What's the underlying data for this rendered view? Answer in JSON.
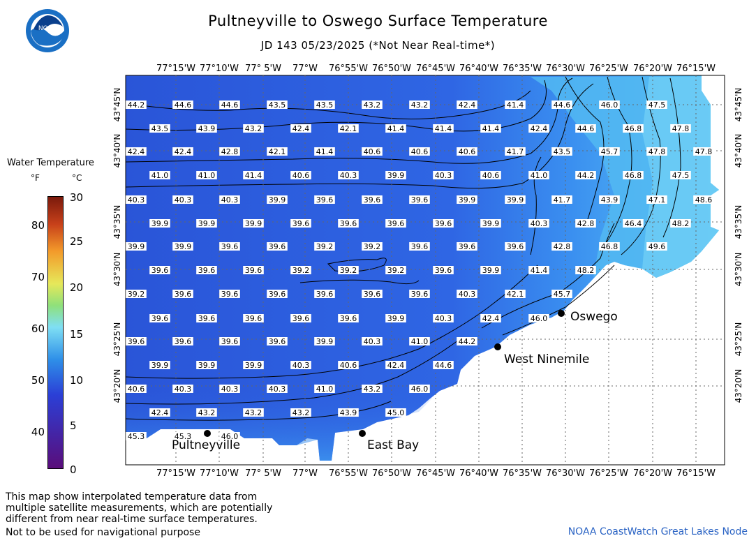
{
  "header": {
    "title": "Pultneyville to Oswego Surface Temperature",
    "subtitle": "JD 143 05/23/2025 (*Not Near Real-time*)",
    "logo_text": "NOAA"
  },
  "legend": {
    "title": "Water Temperature",
    "unit_f": "°F",
    "unit_c": "°C",
    "f_ticks": [
      "80",
      "70",
      "60",
      "50",
      "40"
    ],
    "c_ticks": [
      "30",
      "25",
      "20",
      "15",
      "10",
      "5",
      "0"
    ]
  },
  "axes": {
    "lon_labels": [
      "77°15'W",
      "77°10'W",
      "77° 5'W",
      "77°W",
      "76°55'W",
      "76°50'W",
      "76°45'W",
      "76°40'W",
      "76°35'W",
      "76°30'W",
      "76°25'W",
      "76°20'W",
      "76°15'W"
    ],
    "lon_labels_top_last": "76°15'W",
    "lat_labels": [
      "43°45'N",
      "43°40'N",
      "43°35'N",
      "43°30'N",
      "43°25'N",
      "43°20'N"
    ]
  },
  "map": {
    "places": [
      {
        "name": "Oswego"
      },
      {
        "name": "West Ninemile"
      },
      {
        "name": "Pultneyville"
      },
      {
        "name": "East Bay"
      }
    ],
    "grid_values": [
      [
        "44.2",
        "44.6",
        "44.6",
        "43.5",
        "43.5",
        "43.2",
        "43.2",
        "42.4",
        "41.4",
        "44.6",
        "46.0",
        "47.5"
      ],
      [
        "43.5",
        "43.9",
        "43.2",
        "42.4",
        "42.1",
        "41.4",
        "41.4",
        "41.4",
        "42.4",
        "44.6",
        "46.8",
        "47.8"
      ],
      [
        "42.4",
        "42.4",
        "42.8",
        "42.1",
        "41.4",
        "40.6",
        "40.6",
        "40.6",
        "41.7",
        "43.5",
        "45.7",
        "47.8",
        "47.8"
      ],
      [
        "41.0",
        "41.0",
        "41.4",
        "40.6",
        "40.3",
        "39.9",
        "40.3",
        "40.6",
        "41.0",
        "44.2",
        "46.8",
        "47.5"
      ],
      [
        "40.3",
        "40.3",
        "40.3",
        "39.9",
        "39.6",
        "39.6",
        "39.6",
        "39.9",
        "39.9",
        "41.7",
        "43.9",
        "47.1",
        "48.6"
      ],
      [
        "39.9",
        "39.9",
        "39.9",
        "39.6",
        "39.6",
        "39.6",
        "39.6",
        "39.9",
        "40.3",
        "42.8",
        "46.4",
        "48.2"
      ],
      [
        "39.9",
        "39.9",
        "39.6",
        "39.6",
        "39.2",
        "39.2",
        "39.6",
        "39.6",
        "39.6",
        "42.8",
        "46.8",
        "49.6"
      ],
      [
        "39.6",
        "39.6",
        "39.6",
        "39.2",
        "39.2",
        "39.2",
        "39.6",
        "39.9",
        "41.4",
        "48.2"
      ],
      [
        "39.2",
        "39.6",
        "39.6",
        "39.6",
        "39.6",
        "39.6",
        "39.6",
        "40.3",
        "42.1",
        "45.7"
      ],
      [
        "39.6",
        "39.6",
        "39.6",
        "39.6",
        "39.6",
        "39.9",
        "40.3",
        "42.4",
        "46.0"
      ],
      [
        "39.6",
        "39.6",
        "39.6",
        "39.6",
        "39.9",
        "40.3",
        "41.0",
        "44.2"
      ],
      [
        "39.9",
        "39.9",
        "39.9",
        "40.3",
        "40.6",
        "42.4",
        "44.6"
      ],
      [
        "40.6",
        "40.3",
        "40.3",
        "40.3",
        "41.0",
        "43.2",
        "46.0"
      ],
      [
        "42.4",
        "43.2",
        "43.2",
        "43.2",
        "43.9",
        "45.0"
      ],
      [
        "45.3",
        "45.3",
        "46.0"
      ]
    ]
  },
  "notes": {
    "line1": "This map show interpolated temperature data from",
    "line2": "multiple satellite measurements, which are potentially",
    "line3": "different from near real-time surface temperatures.",
    "line4": "Not to be used for navigational purpose"
  },
  "credit": "NOAA CoastWatch Great Lakes Node",
  "colors": {
    "deep_water": "#2f64e0",
    "warm_water": "#58c8f4",
    "credit": "#2a63c4"
  }
}
